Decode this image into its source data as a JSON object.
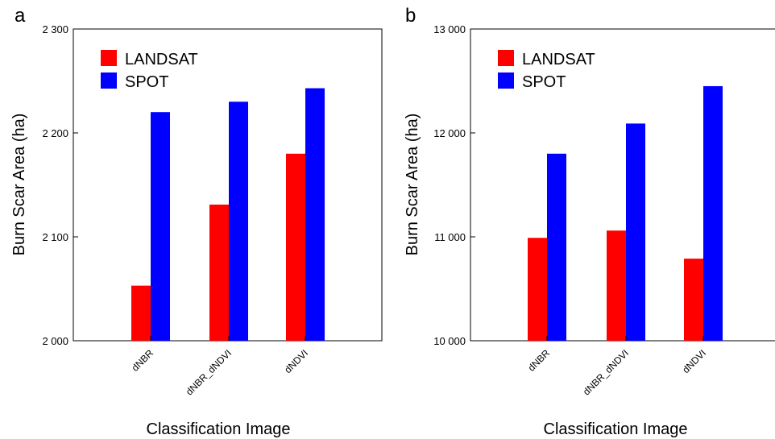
{
  "colors": {
    "landsat": "#ff0000",
    "spot": "#0000ff",
    "axis": "#000000",
    "background": "#ffffff"
  },
  "chart_data": [
    {
      "panel_label": "a",
      "type": "bar",
      "categories": [
        "dNBR",
        "dNBR_dNDVI",
        "dNDVI"
      ],
      "series": [
        {
          "name": "LANDSAT",
          "color": "#ff0000",
          "values": [
            2053,
            2131,
            2180
          ]
        },
        {
          "name": "SPOT",
          "color": "#0000ff",
          "values": [
            2220,
            2230,
            2243
          ]
        }
      ],
      "title": "",
      "xlabel": "Classification Image",
      "ylabel": "Burn Scar Area (ha)",
      "ylim": [
        2000,
        2300
      ],
      "yticks": [
        2000,
        2100,
        2200,
        2300
      ],
      "ytick_labels": [
        "2 000",
        "2 100",
        "2 200",
        "2 300"
      ],
      "legend_position": "top-left",
      "grid": false
    },
    {
      "panel_label": "b",
      "type": "bar",
      "categories": [
        "dNBR",
        "dNBR_dNDVI",
        "dNDVI"
      ],
      "series": [
        {
          "name": "LANDSAT",
          "color": "#ff0000",
          "values": [
            10990,
            11060,
            10790
          ]
        },
        {
          "name": "SPOT",
          "color": "#0000ff",
          "values": [
            11800,
            12090,
            12450
          ]
        }
      ],
      "title": "",
      "xlabel": "Classification Image",
      "ylabel": "Burn Scar Area (ha)",
      "ylim": [
        10000,
        13000
      ],
      "yticks": [
        10000,
        11000,
        12000,
        13000
      ],
      "ytick_labels": [
        "10 000",
        "11 000",
        "12 000",
        "13 000"
      ],
      "legend_position": "top-left",
      "grid": false
    }
  ]
}
